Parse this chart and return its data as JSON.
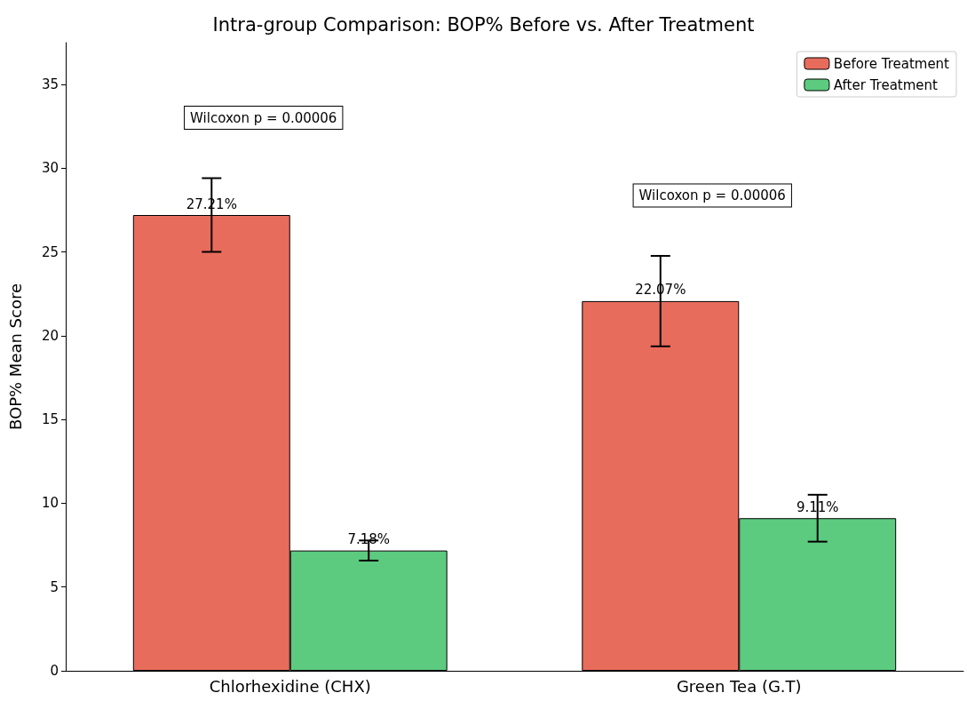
{
  "chart_data": {
    "type": "bar",
    "title": "Intra-group Comparison: BOP% Before vs. After Treatment",
    "ylabel": "BOP% Mean Score",
    "categories": [
      "Chlorhexidine (CHX)",
      "Green Tea (G.T)"
    ],
    "series": [
      {
        "name": "Before Treatment",
        "color": "#e86c5c",
        "values": [
          27.21,
          22.07
        ],
        "errors": [
          2.2,
          2.7
        ],
        "value_labels": [
          "27.21%",
          "22.07%"
        ]
      },
      {
        "name": "After Treatment",
        "color": "#5ccb7f",
        "values": [
          7.18,
          9.11
        ],
        "errors": [
          0.6,
          1.4
        ],
        "value_labels": [
          "7.18%",
          "9.11%"
        ]
      }
    ],
    "ylim": [
      0,
      37.5
    ],
    "yticks": [
      0,
      5,
      10,
      15,
      20,
      25,
      30,
      35
    ],
    "grid": false,
    "legend": "top right",
    "annotations": [
      "Wilcoxon p = 0.00006",
      "Wilcoxon p = 0.00006"
    ]
  }
}
